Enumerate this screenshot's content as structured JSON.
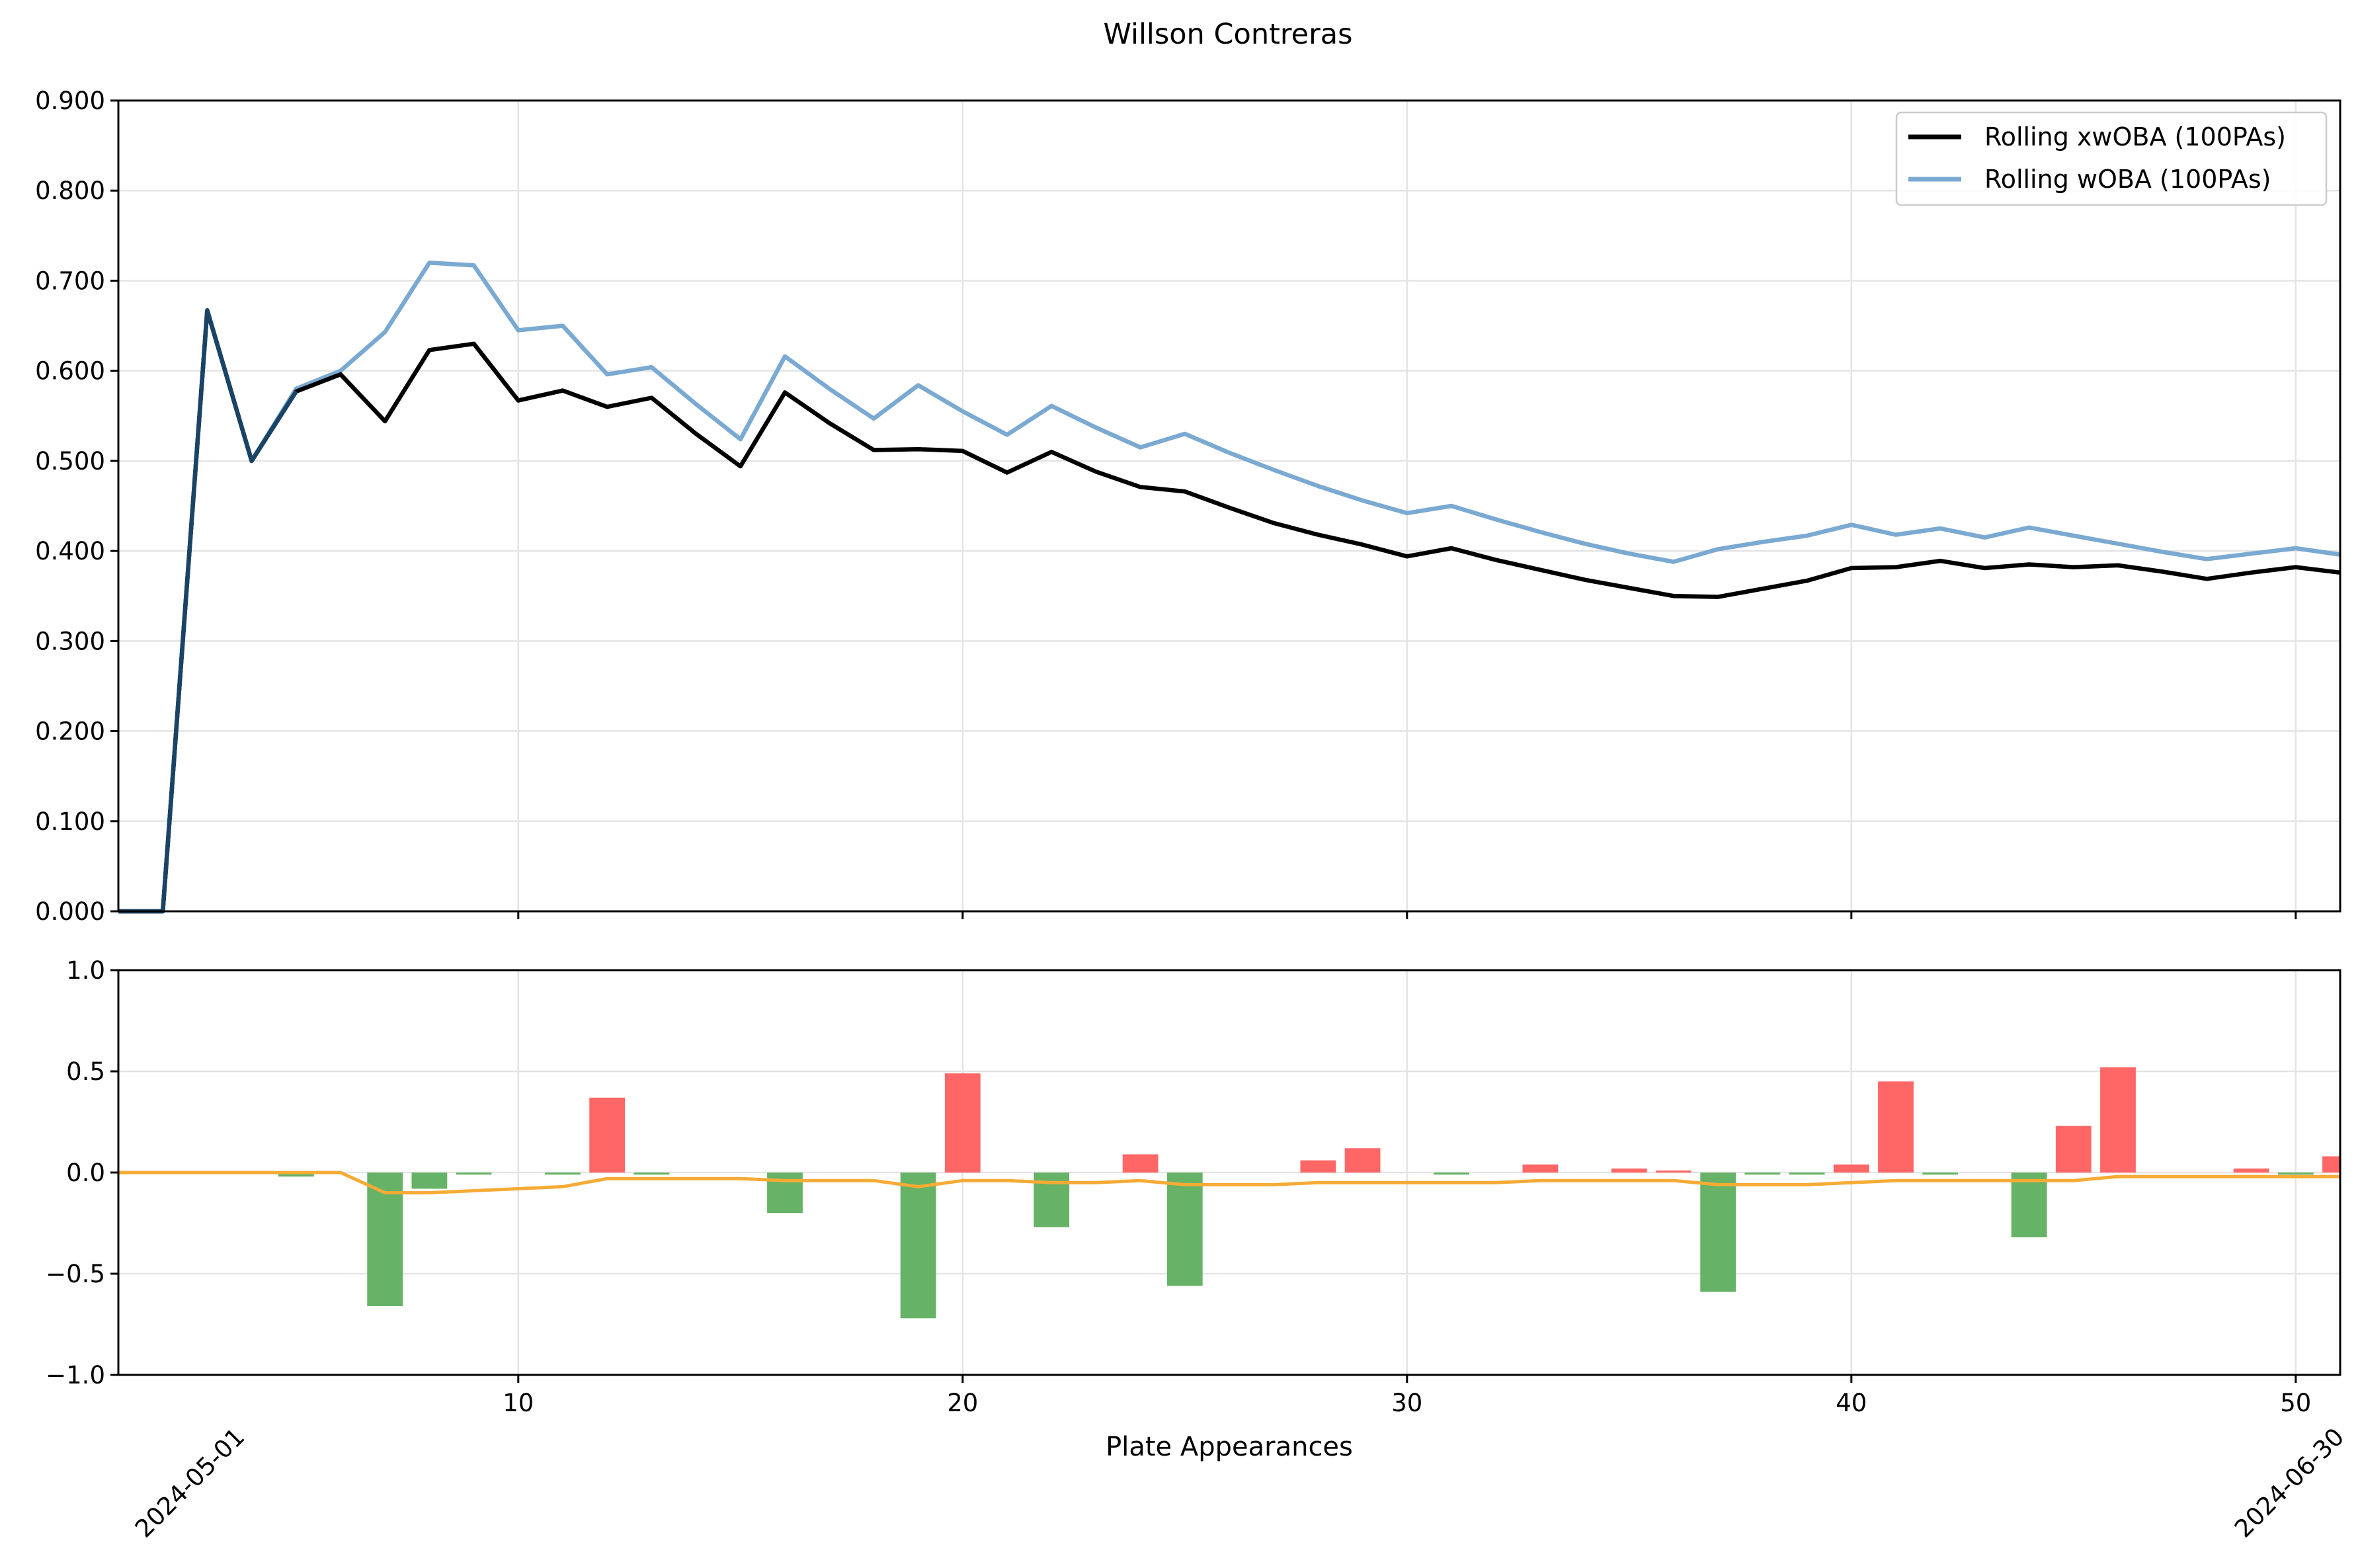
{
  "chart_data": [
    {
      "type": "line",
      "title": "Willson Contreras",
      "xlabel": "",
      "ylabel": "",
      "xlim": [
        1,
        51
      ],
      "ylim": [
        0.0,
        0.9
      ],
      "y_ticks": [
        "0.000",
        "0.100",
        "0.200",
        "0.300",
        "0.400",
        "0.500",
        "0.600",
        "0.700",
        "0.800",
        "0.900"
      ],
      "grid": true,
      "legend_position": "top-right",
      "x": [
        1,
        2,
        3,
        4,
        5,
        6,
        7,
        8,
        9,
        10,
        11,
        12,
        13,
        14,
        15,
        16,
        17,
        18,
        19,
        20,
        21,
        22,
        23,
        24,
        25,
        26,
        27,
        28,
        29,
        30,
        31,
        32,
        33,
        34,
        35,
        36,
        37,
        38,
        39,
        40,
        41,
        42,
        43,
        44,
        45,
        46,
        47,
        48,
        49,
        50,
        51
      ],
      "series": [
        {
          "name": "Rolling xwOBA (100PAs)",
          "color": "#000000",
          "values": [
            0.0,
            0.0,
            0.667,
            0.5,
            0.577,
            0.596,
            0.544,
            0.623,
            0.63,
            0.567,
            0.578,
            0.56,
            0.57,
            0.53,
            0.494,
            0.576,
            0.542,
            0.512,
            0.513,
            0.511,
            0.487,
            0.51,
            0.488,
            0.471,
            0.466,
            0.448,
            0.431,
            0.418,
            0.407,
            0.394,
            0.403,
            0.39,
            0.379,
            0.368,
            0.359,
            0.35,
            0.349,
            0.358,
            0.367,
            0.381,
            0.382,
            0.389,
            0.381,
            0.385,
            0.382,
            0.384,
            0.377,
            0.369,
            0.376,
            0.382,
            0.376
          ]
        },
        {
          "name": "Rolling wOBA (100PAs)",
          "color": "#7aa9d1",
          "values": [
            0.0,
            0.0,
            0.667,
            0.5,
            0.58,
            0.6,
            0.643,
            0.72,
            0.717,
            0.645,
            0.65,
            0.596,
            0.604,
            0.563,
            0.524,
            0.616,
            0.58,
            0.547,
            0.584,
            0.555,
            0.529,
            0.561,
            0.537,
            0.515,
            0.53,
            0.509,
            0.49,
            0.472,
            0.456,
            0.442,
            0.45,
            0.435,
            0.421,
            0.408,
            0.397,
            0.388,
            0.402,
            0.41,
            0.417,
            0.429,
            0.418,
            0.425,
            0.415,
            0.426,
            0.417,
            0.408,
            0.399,
            0.391,
            0.397,
            0.403,
            0.396
          ]
        }
      ]
    },
    {
      "type": "bar",
      "xlabel": "Plate Appearances",
      "ylabel": "",
      "xlim": [
        1,
        51
      ],
      "ylim": [
        -1.0,
        1.0
      ],
      "y_ticks": [
        "1.0",
        "0.5",
        "0.0",
        "−0.5",
        "−1.0"
      ],
      "x_ticks": [
        "10",
        "20",
        "30",
        "40",
        "50"
      ],
      "date_labels": [
        "2024-05-01",
        "2024-06-30"
      ],
      "grid": true,
      "x": [
        1,
        2,
        3,
        4,
        5,
        6,
        7,
        8,
        9,
        10,
        11,
        12,
        13,
        14,
        15,
        16,
        17,
        18,
        19,
        20,
        21,
        22,
        23,
        24,
        25,
        26,
        27,
        28,
        29,
        30,
        31,
        32,
        33,
        34,
        35,
        36,
        37,
        38,
        39,
        40,
        41,
        42,
        43,
        44,
        45,
        46,
        47,
        48,
        49,
        50,
        51
      ],
      "series": [
        {
          "name": "",
          "kind": "bar",
          "positive_color": "#ff6666",
          "negative_color": "#66b266",
          "values": [
            0,
            0,
            0,
            0,
            -0.02,
            0,
            -0.66,
            -0.08,
            -0.01,
            0,
            -0.01,
            0.37,
            -0.01,
            0,
            0,
            -0.2,
            0,
            0,
            -0.72,
            0.49,
            0,
            -0.27,
            0,
            0.09,
            -0.56,
            0,
            0,
            0.06,
            0.12,
            0,
            -0.01,
            0,
            0.04,
            0,
            0.02,
            0.01,
            -0.59,
            -0.01,
            -0.01,
            0.04,
            0.45,
            -0.01,
            0,
            -0.32,
            0.23,
            0.52,
            0,
            0,
            0.02,
            -0.01,
            0.08
          ]
        },
        {
          "name": "",
          "kind": "line",
          "color": "#f5ab35",
          "values": [
            0,
            0,
            0,
            0,
            0,
            0,
            -0.1,
            -0.1,
            -0.09,
            -0.08,
            -0.07,
            -0.03,
            -0.03,
            -0.03,
            -0.03,
            -0.04,
            -0.04,
            -0.04,
            -0.07,
            -0.04,
            -0.04,
            -0.05,
            -0.05,
            -0.04,
            -0.06,
            -0.06,
            -0.06,
            -0.05,
            -0.05,
            -0.05,
            -0.05,
            -0.05,
            -0.04,
            -0.04,
            -0.04,
            -0.04,
            -0.06,
            -0.06,
            -0.06,
            -0.05,
            -0.04,
            -0.04,
            -0.04,
            -0.04,
            -0.04,
            -0.02,
            -0.02,
            -0.02,
            -0.02,
            -0.02,
            -0.02
          ]
        }
      ]
    }
  ]
}
